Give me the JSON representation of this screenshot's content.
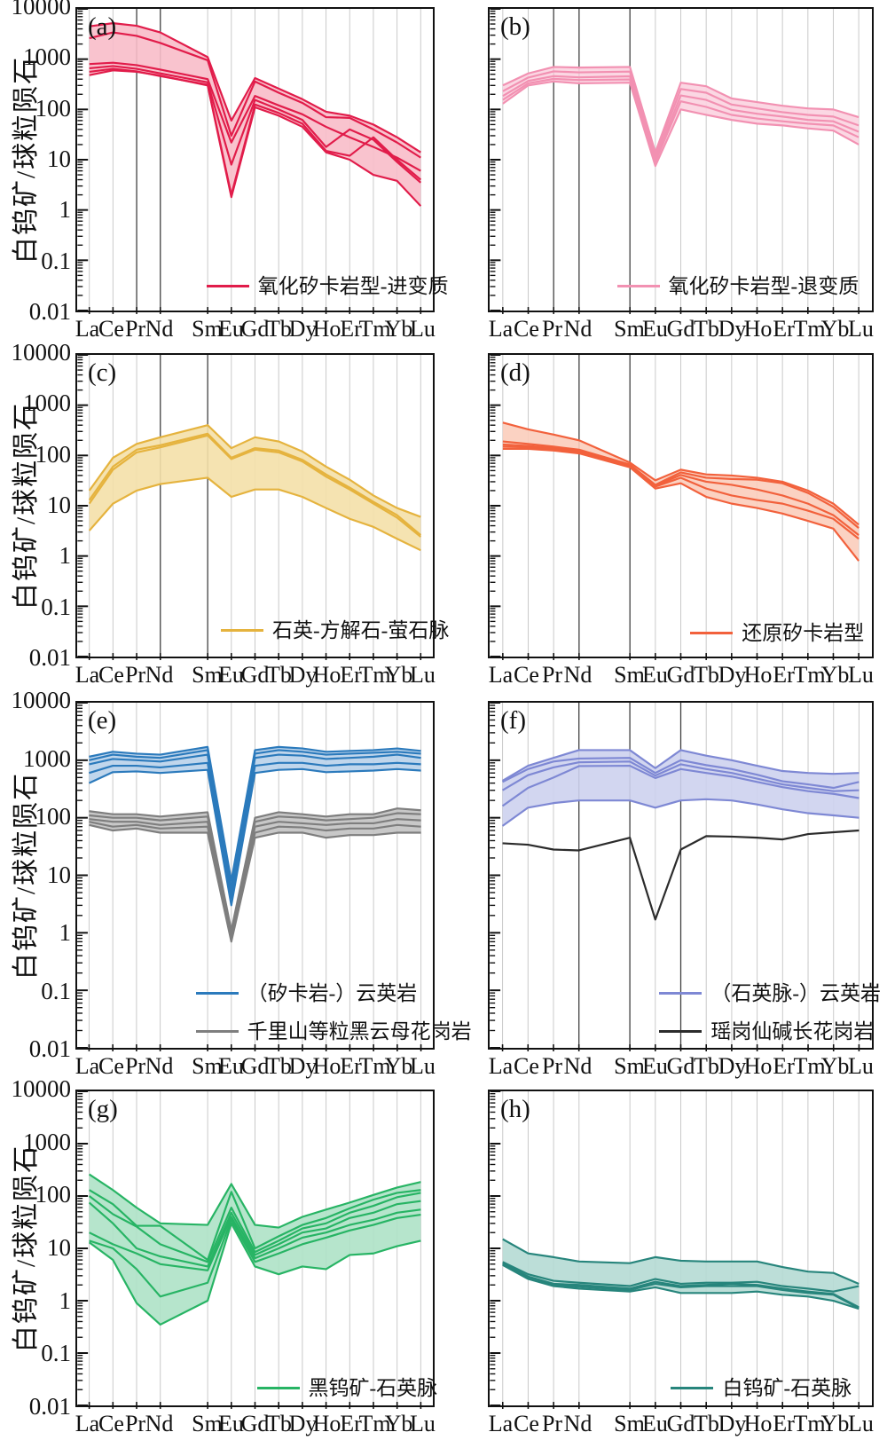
{
  "y_axis": {
    "label": "白钨矿/球粒陨石",
    "tick_labels": [
      "10000",
      "1000",
      "100",
      "10",
      "1",
      "0.1",
      "0.01"
    ],
    "scale": "log",
    "ylim": [
      0.01,
      10000
    ]
  },
  "x_axis": {
    "elements": [
      "La",
      "Ce",
      "Pr",
      "Nd",
      "Sm",
      "Eu",
      "Gd",
      "Tb",
      "Dy",
      "Ho",
      "Er",
      "Tm",
      "Yb",
      "Lu"
    ],
    "gap_after": "Nd"
  },
  "chart_data": [
    {
      "type": "line",
      "letter": "(a)",
      "dark_gridlines": [
        "Pr",
        "Nd"
      ],
      "groups": [
        {
          "name": "氧化矽卡岩型-进变质",
          "line_color": "#e11c4a",
          "fill_color": "#f8bcc9",
          "band_upper": [
            4500,
            5200,
            4600,
            3400,
            1100,
            60,
            420,
            260,
            160,
            90,
            75,
            50,
            28,
            14
          ],
          "band_lower": [
            480,
            600,
            560,
            470,
            300,
            1.8,
            110,
            75,
            45,
            14,
            10,
            5,
            3.8,
            1.2
          ],
          "lines": [
            [
              2600,
              3400,
              2900,
              2100,
              950,
              30,
              360,
              215,
              135,
              70,
              68,
              40,
              22,
              11
            ],
            [
              800,
              850,
              760,
              620,
              400,
              22,
              185,
              120,
              80,
              45,
              28,
              18,
              11,
              6
            ],
            [
              660,
              730,
              640,
              520,
              345,
              8,
              155,
              100,
              62,
              18,
              40,
              25,
              9,
              3.5
            ],
            [
              560,
              640,
              570,
              460,
              310,
              2,
              125,
              85,
              52,
              15,
              12,
              28,
              10,
              4
            ]
          ]
        }
      ]
    },
    {
      "type": "line",
      "letter": "(b)",
      "dark_gridlines": [
        "Pr",
        "Nd",
        "Sm"
      ],
      "groups": [
        {
          "name": "氧化矽卡岩型-退变质",
          "line_color": "#f291b2",
          "fill_color": "#fbd3e0",
          "band_upper": [
            300,
            520,
            700,
            680,
            700,
            14,
            340,
            290,
            165,
            140,
            118,
            105,
            100,
            70
          ],
          "band_lower": [
            130,
            300,
            360,
            330,
            340,
            7.5,
            100,
            78,
            62,
            52,
            48,
            42,
            38,
            20
          ],
          "lines": [
            [
              230,
              430,
              570,
              545,
              565,
              12,
              255,
              215,
              125,
              105,
              88,
              78,
              72,
              48
            ],
            [
              185,
              370,
              460,
              435,
              455,
              10,
              190,
              155,
              98,
              82,
              72,
              62,
              58,
              36
            ],
            [
              155,
              330,
              405,
              385,
              395,
              9,
              145,
              112,
              78,
              66,
              58,
              52,
              48,
              28
            ]
          ]
        }
      ]
    },
    {
      "type": "line",
      "letter": "(c)",
      "dark_gridlines": [
        "Nd",
        "Sm"
      ],
      "groups": [
        {
          "name": "石英-方解石-萤石脉",
          "line_color": "#e5b33e",
          "fill_color": "#f4e0a9",
          "band_upper": [
            20,
            90,
            170,
            230,
            400,
            140,
            230,
            190,
            120,
            60,
            33,
            16,
            9,
            6
          ],
          "band_lower": [
            3.2,
            11,
            20,
            27,
            36,
            15,
            21,
            21,
            15,
            9,
            5.5,
            3.8,
            2.2,
            1.3
          ],
          "lines": [
            [
              13,
              60,
              130,
              160,
              270,
              90,
              140,
              125,
              82,
              42,
              23,
              12,
              6.5,
              2.6
            ],
            [
              11,
              52,
              115,
              145,
              250,
              85,
              130,
              115,
              76,
              38,
              21,
              11,
              5.8,
              2.4
            ]
          ]
        }
      ]
    },
    {
      "type": "line",
      "letter": "(d)",
      "dark_gridlines": [
        "Nd",
        "Sm"
      ],
      "groups": [
        {
          "name": "还原矽卡岩型",
          "line_color": "#f2613c",
          "fill_color": "#fbcdbb",
          "band_upper": [
            450,
            330,
            260,
            200,
            72,
            32,
            52,
            42,
            40,
            36,
            30,
            20,
            11,
            4.2
          ],
          "band_lower": [
            135,
            135,
            125,
            110,
            58,
            22,
            28,
            15,
            11,
            9,
            7,
            5,
            3.5,
            0.8
          ],
          "lines": [
            [
              190,
              170,
              150,
              130,
              66,
              26,
              46,
              36,
              34,
              33,
              28,
              18,
              9.5,
              3.6
            ],
            [
              165,
              155,
              140,
              122,
              63,
              25,
              41,
              30,
              26,
              21,
              16,
              11,
              6.5,
              2.6
            ],
            [
              150,
              145,
              132,
              116,
              60,
              24,
              36,
              22,
              16,
              13,
              11,
              8,
              5.5,
              2.2
            ]
          ]
        }
      ]
    },
    {
      "type": "line",
      "letter": "(e)",
      "dark_gridlines": [],
      "groups": [
        {
          "name": "（矽卡岩-）云英岩",
          "line_color": "#2b7abc",
          "fill_color": "#b9d2ea",
          "band_upper": [
            1150,
            1400,
            1300,
            1250,
            1700,
            8,
            1500,
            1700,
            1600,
            1400,
            1450,
            1500,
            1600,
            1450
          ],
          "band_lower": [
            400,
            620,
            640,
            600,
            680,
            3,
            600,
            680,
            700,
            620,
            640,
            660,
            700,
            660
          ],
          "lines": [
            [
              1000,
              1250,
              1150,
              1100,
              1500,
              6,
              1300,
              1500,
              1400,
              1250,
              1300,
              1350,
              1400,
              1300
            ],
            [
              850,
              1050,
              1000,
              950,
              1250,
              5,
              1100,
              1250,
              1200,
              1050,
              1100,
              1150,
              1250,
              1100
            ],
            [
              600,
              800,
              800,
              750,
              900,
              4,
              800,
              900,
              900,
              800,
              850,
              850,
              900,
              850
            ]
          ]
        },
        {
          "name": "千里山等粒黑云母花岗岩",
          "line_color": "#7e7e7e",
          "fill_color": "#c2c2c2",
          "band_upper": [
            130,
            115,
            115,
            105,
            125,
            1.1,
            100,
            125,
            115,
            105,
            115,
            115,
            145,
            135
          ],
          "band_lower": [
            75,
            60,
            65,
            55,
            55,
            0.7,
            45,
            55,
            55,
            45,
            50,
            50,
            55,
            55
          ],
          "lines": [
            [
              110,
              100,
              100,
              90,
              105,
              0.95,
              85,
              105,
              100,
              90,
              95,
              100,
              120,
              115
            ],
            [
              95,
              85,
              85,
              75,
              85,
              0.85,
              70,
              85,
              80,
              75,
              80,
              80,
              95,
              90
            ],
            [
              85,
              70,
              75,
              65,
              70,
              0.75,
              55,
              70,
              68,
              60,
              65,
              65,
              75,
              70
            ]
          ]
        }
      ]
    },
    {
      "type": "line",
      "letter": "(f)",
      "dark_gridlines": [
        "Nd",
        "Sm",
        "Gd"
      ],
      "groups": [
        {
          "name": "（石英脉-）云英岩",
          "line_color": "#7e88d4",
          "fill_color": "#cdd2ee",
          "band_upper": [
            440,
            800,
            1100,
            1500,
            1500,
            730,
            1500,
            1200,
            1000,
            800,
            650,
            600,
            580,
            600
          ],
          "band_lower": [
            72,
            150,
            180,
            200,
            200,
            150,
            200,
            210,
            200,
            170,
            140,
            120,
            110,
            100
          ],
          "lines": [
            [
              420,
              700,
              950,
              1070,
              1100,
              600,
              1000,
              820,
              700,
              560,
              430,
              380,
              330,
              420
            ],
            [
              300,
              550,
              750,
              920,
              950,
              540,
              850,
              700,
              600,
              480,
              380,
              330,
              290,
              300
            ],
            [
              160,
              330,
              500,
              790,
              800,
              490,
              700,
              600,
              520,
              420,
              340,
              290,
              260,
              220
            ]
          ]
        },
        {
          "name": "瑶岗仙碱长花岗岩",
          "line_color": "#2b2b2b",
          "fill_color": null,
          "band_upper": null,
          "band_lower": null,
          "lines": [
            [
              36,
              34,
              28,
              27,
              45,
              1.7,
              28,
              48,
              47,
              45,
              42,
              52,
              56,
              60
            ]
          ]
        }
      ]
    },
    {
      "type": "line",
      "letter": "(g)",
      "dark_gridlines": [],
      "groups": [
        {
          "name": "黑钨矿-石英脉",
          "line_color": "#27b464",
          "fill_color": "#aee2c6",
          "band_upper": [
            260,
            130,
            60,
            30,
            28,
            170,
            28,
            25,
            40,
            55,
            75,
            105,
            145,
            185
          ],
          "band_lower": [
            13,
            6,
            0.9,
            0.35,
            1,
            30,
            4.5,
            3.2,
            4.5,
            4,
            7.5,
            8,
            11,
            14
          ],
          "lines": [
            [
              130,
              70,
              27,
              27,
              6,
              120,
              10,
              17,
              28,
              38,
              58,
              85,
              115,
              130
            ],
            [
              100,
              45,
              26,
              12,
              5.5,
              60,
              8.5,
              14,
              24,
              30,
              48,
              65,
              95,
              115
            ],
            [
              75,
              30,
              10,
              7,
              4.5,
              48,
              7.5,
              12,
              20,
              24,
              38,
              48,
              70,
              80
            ],
            [
              20,
              12,
              8,
              5,
              3.8,
              40,
              6.5,
              10,
              16,
              20,
              28,
              35,
              48,
              55
            ],
            [
              14,
              10,
              4,
              1.2,
              2.2,
              35,
              5.5,
              8,
              12,
              16,
              22,
              28,
              38,
              44
            ]
          ]
        }
      ]
    },
    {
      "type": "line",
      "letter": "(h)",
      "dark_gridlines": [],
      "groups": [
        {
          "name": "白钨矿-石英脉",
          "line_color": "#27857c",
          "fill_color": "#b5dad4",
          "band_upper": [
            15,
            8,
            6.8,
            5.6,
            5.2,
            6.8,
            5.8,
            5.6,
            5.6,
            5.6,
            4.4,
            3.6,
            3.4,
            2.1
          ],
          "band_lower": [
            4.8,
            2.6,
            1.9,
            1.7,
            1.5,
            1.8,
            1.4,
            1.4,
            1.4,
            1.5,
            1.3,
            1.2,
            1.0,
            0.7
          ],
          "lines": [
            [
              5.5,
              3.2,
              2.4,
              2.2,
              1.9,
              2.6,
              2.1,
              2.2,
              2.2,
              2.3,
              1.9,
              1.7,
              1.5,
              1.9
            ],
            [
              5.2,
              2.9,
              2.1,
              2.0,
              1.7,
              2.3,
              1.9,
              2.0,
              2.1,
              2.0,
              1.7,
              1.5,
              1.35,
              0.75
            ],
            [
              5.0,
              2.7,
              2.0,
              1.85,
              1.6,
              2.1,
              1.8,
              1.9,
              1.9,
              1.9,
              1.6,
              1.4,
              1.3,
              0.72
            ]
          ]
        }
      ]
    }
  ],
  "style": {
    "gridline_light": "#c9c9c9",
    "gridline_dark": "#3f3f3f",
    "axis_color": "#111111",
    "background": "#ffffff"
  }
}
